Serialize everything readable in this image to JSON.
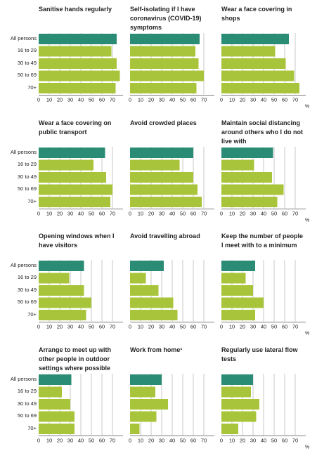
{
  "chart_data": {
    "type": "bar",
    "orientation": "horizontal",
    "unit": "%",
    "categories": [
      "All persons",
      "16 to 29",
      "30 to 49",
      "50 to 69",
      "70+"
    ],
    "xlim": [
      0,
      80
    ],
    "xticks": [
      "0",
      "10",
      "20",
      "30",
      "40",
      "50",
      "60",
      "70"
    ],
    "colors": {
      "all_persons": "#2b8c76",
      "age_groups": "#a8c43a"
    },
    "grid": true,
    "panels": [
      {
        "title": "Sanitise hands regularly",
        "values": [
          74,
          69,
          74,
          77,
          73
        ]
      },
      {
        "title": "Self-isolating if I have coronavirus (COVID-19) symptoms",
        "values": [
          66,
          62,
          65,
          70,
          63
        ]
      },
      {
        "title": "Wear a face covering in shops",
        "values": [
          64,
          51,
          61,
          69,
          74
        ]
      },
      {
        "title": "Wear a face covering on public transport",
        "values": [
          63,
          52,
          64,
          70,
          68
        ]
      },
      {
        "title": "Avoid crowded places",
        "values": [
          60,
          47,
          60,
          64,
          68
        ]
      },
      {
        "title": "Maintain social distancing around others who I do not live with",
        "values": [
          49,
          31,
          48,
          59,
          53
        ]
      },
      {
        "title": "Opening windows when I have visitors",
        "values": [
          43,
          29,
          43,
          50,
          45
        ]
      },
      {
        "title": "Avoid travelling abroad",
        "values": [
          32,
          15,
          27,
          41,
          45
        ]
      },
      {
        "title": "Keep the number of people I meet with to a minimum",
        "values": [
          32,
          23,
          30,
          40,
          32
        ]
      },
      {
        "title": "Arrange to meet up with other people in outdoor settings where possible",
        "values": [
          31,
          22,
          30,
          34,
          34
        ]
      },
      {
        "title": "Work from home¹",
        "values": [
          30,
          24,
          36,
          25,
          9
        ]
      },
      {
        "title": "Regularly use lateral flow tests",
        "values": [
          30,
          28,
          36,
          33,
          16
        ]
      }
    ]
  }
}
